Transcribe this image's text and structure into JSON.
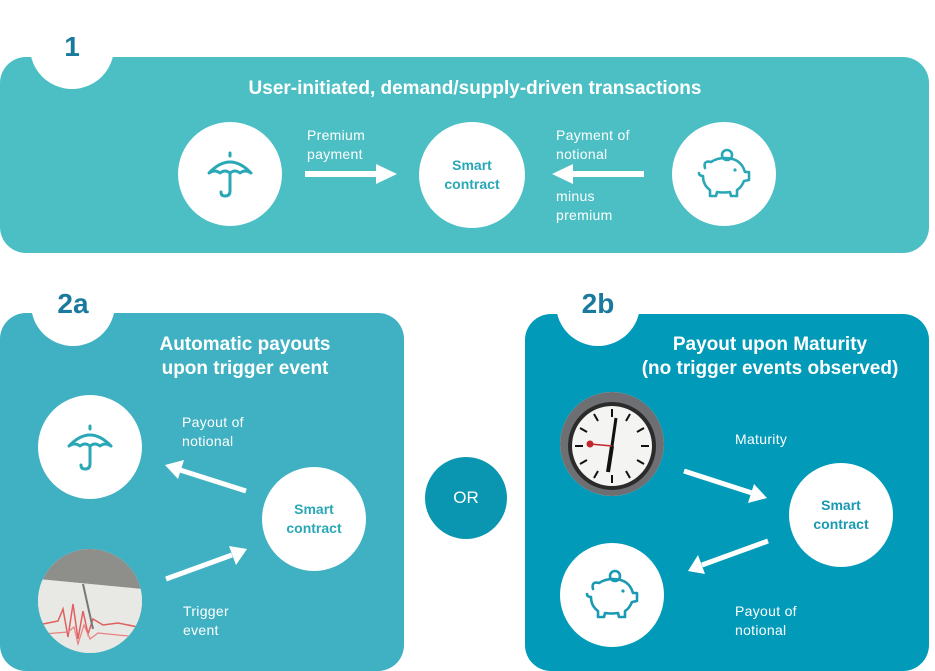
{
  "section1": {
    "badge": "1",
    "title": "User-initiated, demand/supply-driven transactions",
    "label_left": [
      "Premium",
      "payment"
    ],
    "label_right_top": [
      "Payment of",
      "notional"
    ],
    "label_right_bottom": [
      "minus",
      "premium"
    ],
    "contract": [
      "Smart",
      "contract"
    ],
    "icon_left": "umbrella-icon",
    "icon_right": "piggy-bank-icon"
  },
  "section2a": {
    "badge": "2a",
    "title": [
      "Automatic payouts",
      "upon trigger event"
    ],
    "label_top": [
      "Payout of",
      "notional"
    ],
    "label_bottom": [
      "Trigger",
      "event"
    ],
    "contract": [
      "Smart",
      "contract"
    ],
    "icon_top": "umbrella-icon",
    "image_bottom": "seismograph-photo"
  },
  "or_label": "OR",
  "section2b": {
    "badge": "2b",
    "title": [
      "Payout upon Maturity",
      "(no trigger events observed)"
    ],
    "label_top": "Maturity",
    "label_bottom": [
      "Payout of",
      "notional"
    ],
    "contract": [
      "Smart",
      "contract"
    ],
    "image_top": "clock-photo",
    "icon_bottom": "piggy-bank-icon"
  },
  "colors": {
    "panel1": "#4cbfc4",
    "panel2a": "#3fb1c2",
    "panel2b": "#019ab8",
    "icon": "#2aa7b6",
    "badge_text": "#1a7a9e"
  }
}
